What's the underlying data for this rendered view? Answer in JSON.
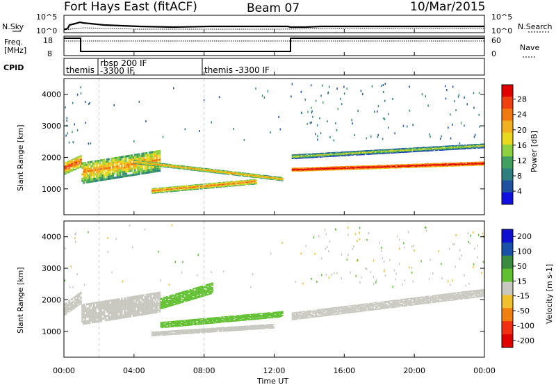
{
  "header": {
    "station": "Fort Hays East (fitACF)",
    "beam": "Beam 07",
    "date": "10/Mar/2015"
  },
  "top_panels": {
    "nsky_label": "N.Sky",
    "nsearch_label": "N.Search",
    "noise_ticks": [
      "10^5",
      "10^0"
    ],
    "freq_label_1": "Freq.",
    "freq_label_2": "[MHz]",
    "freq_ticks": [
      "18",
      "8"
    ],
    "nave_label": "Nave",
    "nave_ticks": [
      "60",
      "0"
    ],
    "cpid_label": "CPID",
    "cpid_segments": [
      {
        "line1": "themis",
        "line2": ""
      },
      {
        "line1": "rbsp 200 IF",
        "line2": "-3300 IF"
      },
      {
        "line1": "themis -3300 IF",
        "line2": ""
      }
    ]
  },
  "axes": {
    "xlabel": "Time UT",
    "x_ticks": [
      "00:00",
      "04:00",
      "08:00",
      "12:00",
      "16:00",
      "20:00",
      "00:00"
    ],
    "ylabel_power": "Slant Range [km]",
    "ylabel_velocity": "Slant Range [km]",
    "y_ticks": [
      "4000",
      "3000",
      "2000",
      "1000"
    ]
  },
  "colorbars": {
    "power_title": "Power [dB]",
    "power_ticks": [
      "28",
      "24",
      "20",
      "16",
      "12",
      "8",
      "4"
    ],
    "power_colors": [
      "#e00000",
      "#f04010",
      "#f07a10",
      "#f0b020",
      "#e8d820",
      "#8fd040",
      "#40a060",
      "#2f7f80",
      "#2050a0",
      "#1010e0"
    ],
    "velocity_title": "Velocity [m s-1]",
    "velocity_ticks": [
      "200",
      "100",
      "50",
      "15",
      "-15",
      "-50",
      "-100",
      "-200"
    ],
    "velocity_colors": [
      "#1010d0",
      "#1a50a8",
      "#3a8a40",
      "#60c030",
      "#c8c8c0",
      "#f0c030",
      "#f08010",
      "#f03010",
      "#e00000"
    ]
  },
  "chart_data": [
    {
      "type": "heatmap",
      "title": "Power [dB]",
      "xlabel": "Time UT",
      "ylabel": "Slant Range [km]",
      "xlim": [
        0,
        24
      ],
      "ylim": [
        180,
        4500
      ],
      "clim": [
        0,
        30
      ],
      "bands": [
        {
          "t_start": 0.0,
          "t_end": 1.0,
          "range_start": 1450,
          "range_end": 1700,
          "range_end_end": 2050,
          "power": 18
        },
        {
          "t_start": 1.0,
          "t_end": 5.5,
          "range_start": 1150,
          "range_end": 1550,
          "range_end_end": 2300,
          "power": 14
        },
        {
          "t_start": 4.0,
          "t_end": 12.5,
          "range_start": 1800,
          "range_end": 1250,
          "range_end_end": 1500,
          "power": 14
        },
        {
          "t_start": 5.0,
          "t_end": 11.0,
          "range_start": 850,
          "range_end": 1150,
          "range_end_end": 1050,
          "power": 16
        },
        {
          "t_start": 13.0,
          "t_end": 24.0,
          "range_start": 1550,
          "range_end": 1750,
          "range_end_end": 1600,
          "power": 24
        },
        {
          "t_start": 13.0,
          "t_end": 24.0,
          "range_start": 1950,
          "range_end": 2300,
          "range_end_end": 2100,
          "power": 8
        }
      ]
    },
    {
      "type": "heatmap",
      "title": "Velocity [m s-1]",
      "xlabel": "Time UT",
      "ylabel": "Slant Range [km]",
      "xlim": [
        0,
        24
      ],
      "ylim": [
        180,
        4500
      ],
      "clim": [
        -200,
        200
      ],
      "bands": [
        {
          "t_start": 0.0,
          "t_end": 1.0,
          "range_start": 1500,
          "range_end": 1900,
          "range_end_end": 2100,
          "velocity": 0
        },
        {
          "t_start": 1.0,
          "t_end": 5.5,
          "range_start": 1200,
          "range_end": 1600,
          "range_end_end": 2300,
          "velocity": 0
        },
        {
          "t_start": 5.5,
          "t_end": 8.5,
          "range_start": 1700,
          "range_end": 2200,
          "range_end_end": 2250,
          "velocity": 40
        },
        {
          "t_start": 5.5,
          "t_end": 12.5,
          "range_start": 1100,
          "range_end": 1450,
          "range_end_end": 1350,
          "velocity": 40
        },
        {
          "t_start": 5.0,
          "t_end": 12.0,
          "range_start": 850,
          "range_end": 1100,
          "range_end_end": 1000,
          "velocity": 0
        },
        {
          "t_start": 13.0,
          "t_end": 24.0,
          "range_start": 1350,
          "range_end": 2100,
          "range_end_end": 1700,
          "velocity": 0
        }
      ]
    }
  ]
}
